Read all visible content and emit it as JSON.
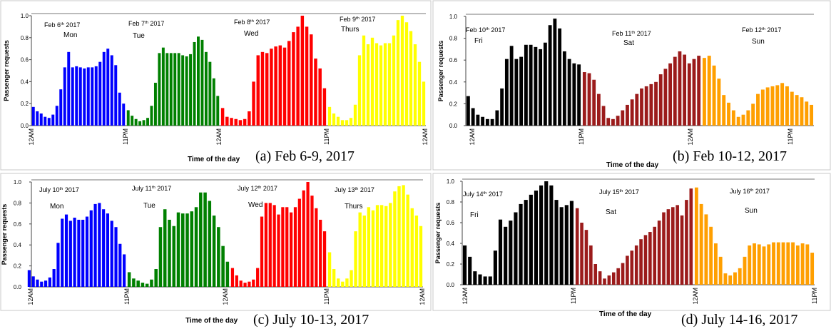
{
  "panels": [
    {
      "caption": "(a) Feb 6-9, 2017",
      "ylabel": "Passenger requests",
      "xlabel": "Time of the day",
      "yticks": [
        "0.0",
        "0.2",
        "0.4",
        "0.6",
        "0.8",
        "1.0"
      ],
      "xticks": [
        "12AM",
        "11PM",
        "12AM",
        "11PM",
        "12AM",
        "11PM",
        "11PM"
      ]
    },
    {
      "caption": "(b) Feb 10-12, 2017",
      "ylabel": "Passenger requests",
      "xlabel": "Time of the day",
      "yticks": [
        "0.0",
        "0.2",
        "0.4",
        "0.6",
        "0.8",
        "1.0"
      ],
      "xticks": [
        "12AM",
        "11PM",
        "12AM",
        "11PM",
        "12AM",
        "11PM"
      ]
    },
    {
      "caption": "(c) July 10-13, 2017",
      "ylabel": "Passenger requests",
      "xlabel": "Time of the day",
      "yticks": [
        "0.0",
        "0.2",
        "0.4",
        "0.6",
        "0.8",
        "1.0"
      ],
      "xticks": [
        "12AM",
        "11PM",
        "12AM",
        "11PM",
        "12AM",
        "11PM",
        "11PM"
      ]
    },
    {
      "caption": "(d) July 14-16, 2017",
      "ylabel": "Passenger requests",
      "xlabel": "Time of the day",
      "yticks": [
        "0.0",
        "0.2",
        "0.4",
        "0.6",
        "0.8",
        "1.0"
      ],
      "xticks": [
        "12AM",
        "11PM",
        "12AM",
        "11PM",
        "12AM",
        "11PM"
      ]
    }
  ],
  "chart_data": [
    {
      "type": "bar",
      "caption": "(a) Feb 6-9, 2017",
      "ylabel": "Passenger requests",
      "xlabel": "Time of the day",
      "ylim": [
        0,
        1.0
      ],
      "grid": false,
      "series": [
        {
          "date_label": "Feb 6th 2017",
          "day_label": "Mon",
          "color": "#0000ff",
          "values": [
            0.17,
            0.13,
            0.11,
            0.08,
            0.07,
            0.1,
            0.18,
            0.33,
            0.53,
            0.67,
            0.53,
            0.54,
            0.53,
            0.52,
            0.53,
            0.53,
            0.54,
            0.58,
            0.67,
            0.7,
            0.64,
            0.55,
            0.3,
            0.2
          ]
        },
        {
          "date_label": "Feb 7th 2017",
          "day_label": "Tue",
          "color": "#008000",
          "values": [
            0.14,
            0.09,
            0.06,
            0.04,
            0.05,
            0.07,
            0.18,
            0.39,
            0.66,
            0.71,
            0.66,
            0.66,
            0.66,
            0.66,
            0.64,
            0.63,
            0.65,
            0.76,
            0.81,
            0.78,
            0.67,
            0.58,
            0.43,
            0.27
          ]
        },
        {
          "date_label": "Feb 8th 2017",
          "day_label": "Wed",
          "color": "#ff0000",
          "values": [
            0.16,
            0.08,
            0.07,
            0.06,
            0.05,
            0.06,
            0.13,
            0.4,
            0.64,
            0.67,
            0.66,
            0.7,
            0.72,
            0.73,
            0.71,
            0.77,
            0.85,
            0.9,
            1.0,
            0.9,
            0.83,
            0.61,
            0.52,
            0.34
          ]
        },
        {
          "date_label": "Feb 9th 2017",
          "day_label": "Thurs",
          "color": "#ffff00",
          "values": [
            0.17,
            0.11,
            0.08,
            0.05,
            0.05,
            0.07,
            0.19,
            0.64,
            0.82,
            0.74,
            0.8,
            0.75,
            0.73,
            0.75,
            0.75,
            0.82,
            0.96,
            1.0,
            0.94,
            0.86,
            0.74,
            0.58,
            0.4
          ]
        }
      ]
    },
    {
      "type": "bar",
      "caption": "(b) Feb 10-12, 2017",
      "ylabel": "Passenger requests",
      "xlabel": "Time of the day",
      "ylim": [
        0,
        1.0
      ],
      "grid": false,
      "series": [
        {
          "date_label": "Feb 10th 2017",
          "day_label": "Fri",
          "color": "#000000",
          "values": [
            0.27,
            0.16,
            0.1,
            0.08,
            0.06,
            0.06,
            0.14,
            0.34,
            0.61,
            0.73,
            0.61,
            0.63,
            0.74,
            0.74,
            0.72,
            0.7,
            0.76,
            0.92,
            0.98,
            0.89,
            0.68,
            0.61,
            0.57,
            0.56
          ]
        },
        {
          "date_label": "Feb 11th 2017",
          "day_label": "Sat",
          "color": "#9b1b1b",
          "values": [
            0.49,
            0.48,
            0.42,
            0.29,
            0.18,
            0.07,
            0.06,
            0.09,
            0.14,
            0.19,
            0.24,
            0.29,
            0.34,
            0.36,
            0.38,
            0.4,
            0.47,
            0.52,
            0.57,
            0.63,
            0.68,
            0.65,
            0.57,
            0.61,
            0.64
          ]
        },
        {
          "date_label": "Feb 12th 2017",
          "day_label": "Sun",
          "color": "#ff9f00",
          "values": [
            0.62,
            0.64,
            0.55,
            0.43,
            0.28,
            0.21,
            0.14,
            0.08,
            0.1,
            0.14,
            0.2,
            0.29,
            0.33,
            0.35,
            0.36,
            0.37,
            0.39,
            0.36,
            0.31,
            0.28,
            0.26,
            0.22,
            0.19
          ]
        }
      ]
    },
    {
      "type": "bar",
      "caption": "(c) July 10-13, 2017",
      "ylabel": "Passenger requests",
      "xlabel": "Time of the day",
      "ylim": [
        0,
        1.0
      ],
      "grid": false,
      "series": [
        {
          "date_label": "July 10th 2017",
          "day_label": "Mon",
          "color": "#0000ff",
          "values": [
            0.16,
            0.1,
            0.07,
            0.05,
            0.06,
            0.09,
            0.17,
            0.42,
            0.65,
            0.69,
            0.63,
            0.66,
            0.64,
            0.64,
            0.67,
            0.73,
            0.79,
            0.8,
            0.74,
            0.7,
            0.63,
            0.57,
            0.41,
            0.31
          ]
        },
        {
          "date_label": "July 11th 2017",
          "day_label": "Tue",
          "color": "#008000",
          "values": [
            0.14,
            0.08,
            0.06,
            0.04,
            0.03,
            0.07,
            0.17,
            0.57,
            0.74,
            0.64,
            0.58,
            0.71,
            0.7,
            0.7,
            0.72,
            0.76,
            0.9,
            0.9,
            0.82,
            0.68,
            0.57,
            0.39,
            0.24
          ]
        },
        {
          "date_label": "July 12th 2017",
          "day_label": "Wed",
          "color": "#ff0000",
          "values": [
            0.18,
            0.11,
            0.06,
            0.04,
            0.05,
            0.07,
            0.18,
            0.67,
            0.8,
            0.8,
            0.78,
            0.69,
            0.76,
            0.76,
            0.71,
            0.76,
            0.84,
            0.92,
            1.0,
            0.87,
            0.75,
            0.64,
            0.53
          ]
        },
        {
          "date_label": "July 13th 2017",
          "day_label": "Thurs",
          "color": "#ffff00",
          "values": [
            0.33,
            0.17,
            0.08,
            0.05,
            0.08,
            0.16,
            0.53,
            0.71,
            0.68,
            0.76,
            0.73,
            0.78,
            0.78,
            0.77,
            0.8,
            0.91,
            0.96,
            0.97,
            0.88,
            0.75,
            0.68,
            0.58
          ]
        }
      ]
    },
    {
      "type": "bar",
      "caption": "(d) July 14-16, 2017",
      "ylabel": "Passenger requests",
      "xlabel": "Time of the day",
      "ylim": [
        0,
        1.0
      ],
      "grid": false,
      "series": [
        {
          "date_label": "July 14th 2017",
          "day_label": "Fri",
          "color": "#000000",
          "values": [
            0.38,
            0.27,
            0.13,
            0.1,
            0.08,
            0.08,
            0.33,
            0.63,
            0.56,
            0.62,
            0.7,
            0.78,
            0.82,
            0.87,
            0.91,
            0.96,
            1.0,
            0.96,
            0.82,
            0.75,
            0.77,
            0.81
          ]
        },
        {
          "date_label": "July 15th 2017",
          "day_label": "Sat",
          "color": "#9b1b1b",
          "values": [
            0.74,
            0.6,
            0.53,
            0.38,
            0.2,
            0.13,
            0.06,
            0.09,
            0.12,
            0.16,
            0.21,
            0.28,
            0.33,
            0.38,
            0.44,
            0.48,
            0.51,
            0.56,
            0.62,
            0.7,
            0.73,
            0.75,
            0.77,
            0.67,
            0.82,
            0.93
          ]
        },
        {
          "date_label": "July 16th 2017",
          "day_label": "Sun",
          "color": "#ff9f00",
          "values": [
            0.94,
            0.78,
            0.68,
            0.56,
            0.4,
            0.27,
            0.11,
            0.09,
            0.12,
            0.16,
            0.27,
            0.38,
            0.4,
            0.39,
            0.37,
            0.39,
            0.41,
            0.41,
            0.41,
            0.41,
            0.41,
            0.38,
            0.4,
            0.39,
            0.31
          ]
        }
      ]
    }
  ]
}
